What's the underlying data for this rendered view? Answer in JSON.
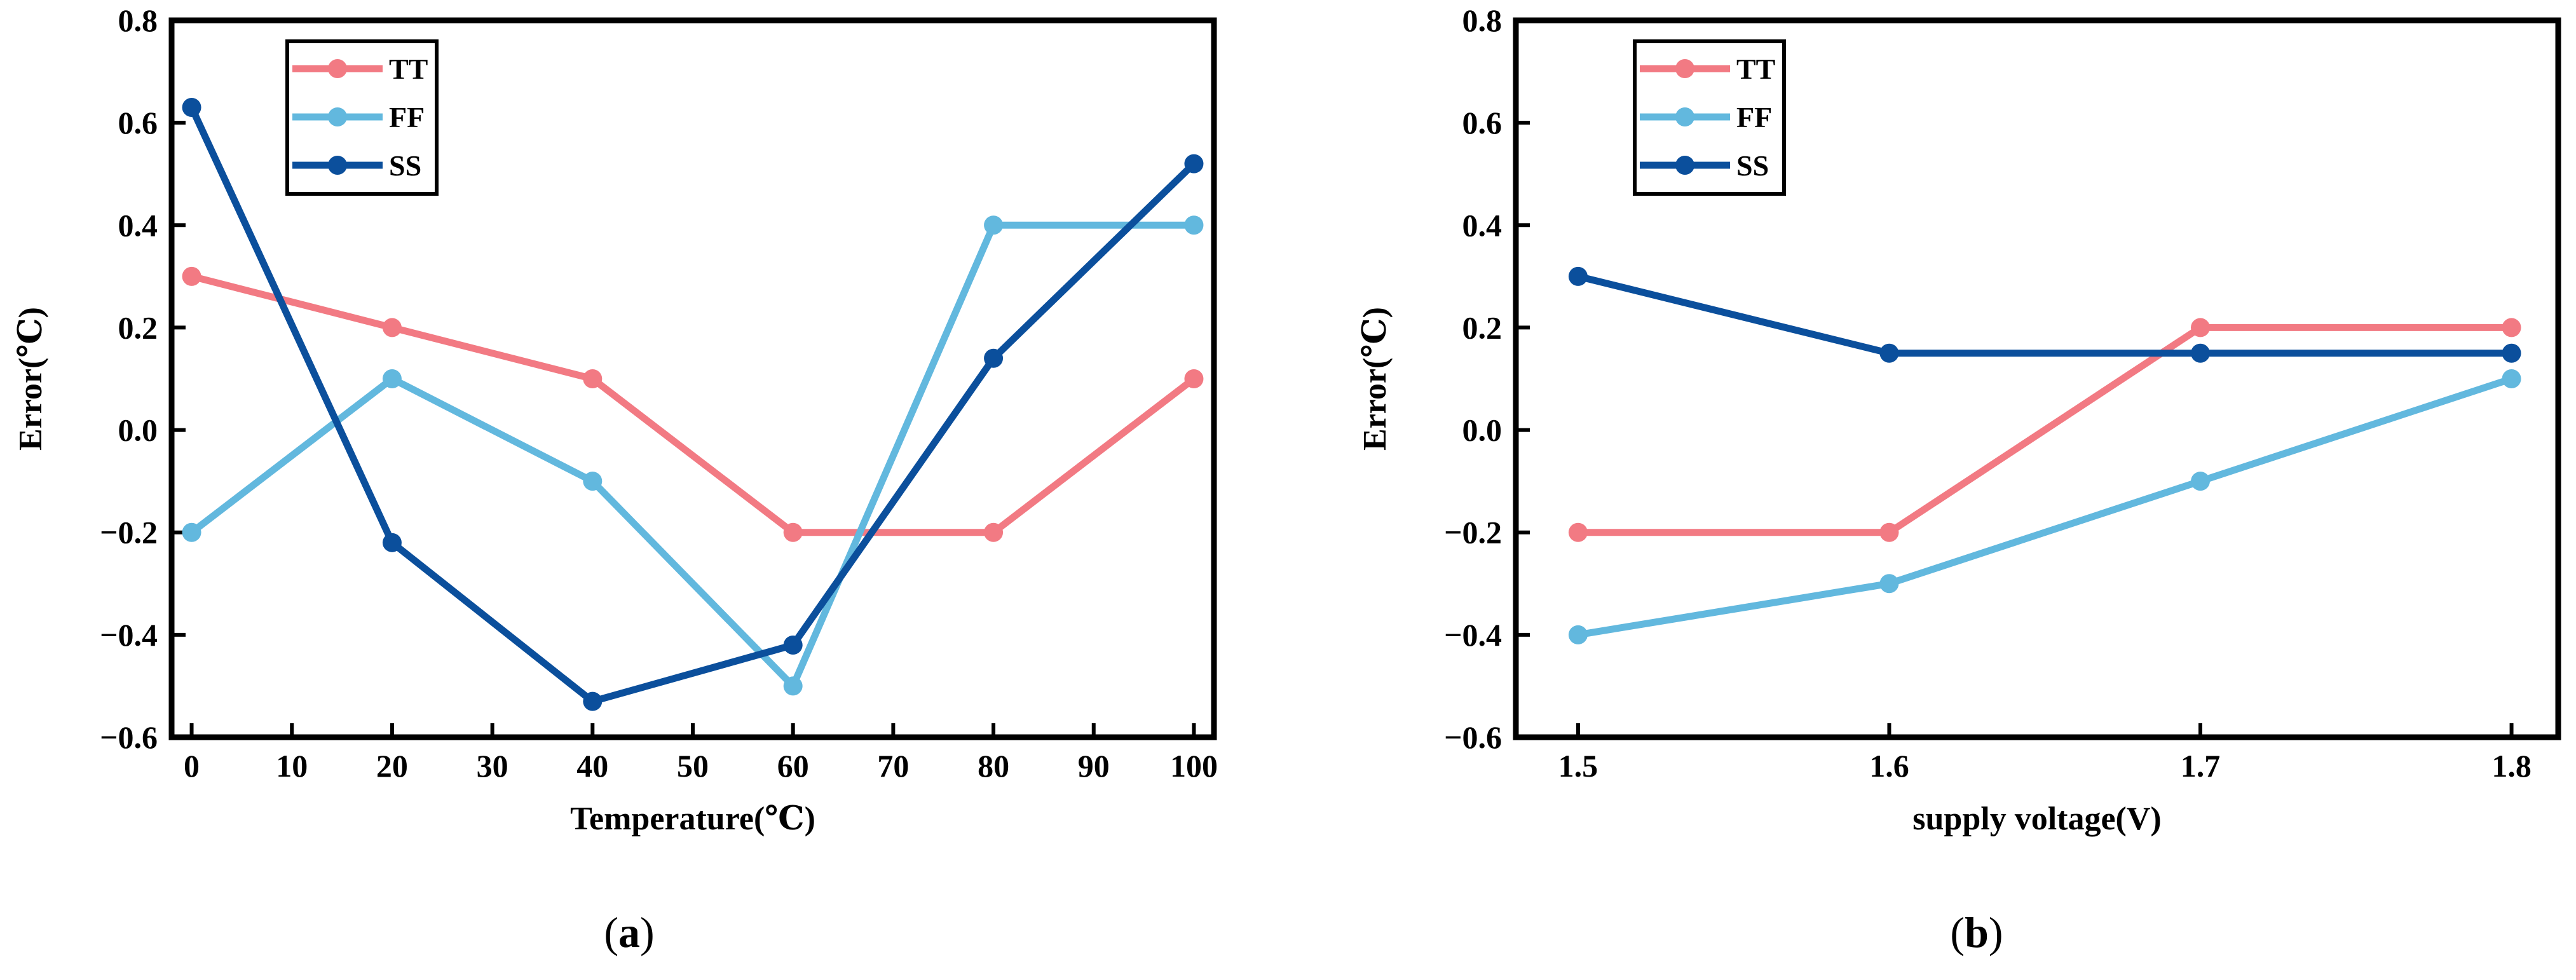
{
  "colors": {
    "TT": "#F27A83",
    "FF": "#62B8DE",
    "SS": "#0B4F9C"
  },
  "chart_data": [
    {
      "type": "line",
      "panel_label": "a",
      "xlabel": "Temperature(℃)",
      "ylabel": "Error(℃)",
      "xlim": [
        -2,
        102
      ],
      "ylim": [
        -0.6,
        0.8
      ],
      "xticks": [
        0,
        10,
        20,
        30,
        40,
        50,
        60,
        70,
        80,
        90,
        100
      ],
      "xtick_labels": [
        "0",
        "10",
        "20",
        "30",
        "40",
        "50",
        "60",
        "70",
        "80",
        "90",
        "100"
      ],
      "yticks": [
        -0.6,
        -0.4,
        -0.2,
        0.0,
        0.2,
        0.4,
        0.6,
        0.8
      ],
      "ytick_labels": [
        "−0.6",
        "−0.4",
        "−0.2",
        "0.0",
        "0.2",
        "0.4",
        "0.6",
        "0.8"
      ],
      "x": [
        0,
        20,
        40,
        60,
        80,
        100
      ],
      "series": [
        {
          "name": "TT",
          "values": [
            0.3,
            0.2,
            0.1,
            -0.2,
            -0.2,
            0.1
          ]
        },
        {
          "name": "FF",
          "values": [
            -0.2,
            0.1,
            -0.1,
            -0.5,
            0.4,
            0.4
          ]
        },
        {
          "name": "SS",
          "values": [
            0.63,
            -0.22,
            -0.53,
            -0.42,
            0.14,
            0.52
          ]
        }
      ],
      "legend": "top-left"
    },
    {
      "type": "line",
      "panel_label": "b",
      "xlabel": "supply voltage(V)",
      "ylabel": "Error(℃)",
      "xlim": [
        1.48,
        1.815
      ],
      "ylim": [
        -0.6,
        0.8
      ],
      "xticks": [
        1.5,
        1.6,
        1.7,
        1.8
      ],
      "xtick_labels": [
        "1.5",
        "1.6",
        "1.7",
        "1.8"
      ],
      "yticks": [
        -0.6,
        -0.4,
        -0.2,
        0.0,
        0.2,
        0.4,
        0.6,
        0.8
      ],
      "ytick_labels": [
        "−0.6",
        "−0.4",
        "−0.2",
        "0.0",
        "0.2",
        "0.4",
        "0.6",
        "0.8"
      ],
      "x": [
        1.5,
        1.6,
        1.7,
        1.8
      ],
      "series": [
        {
          "name": "TT",
          "values": [
            -0.2,
            -0.2,
            0.2,
            0.2
          ]
        },
        {
          "name": "FF",
          "values": [
            -0.4,
            -0.3,
            -0.1,
            0.1
          ]
        },
        {
          "name": "SS",
          "values": [
            0.3,
            0.15,
            0.15,
            0.15
          ]
        }
      ],
      "legend": "top-left"
    }
  ]
}
